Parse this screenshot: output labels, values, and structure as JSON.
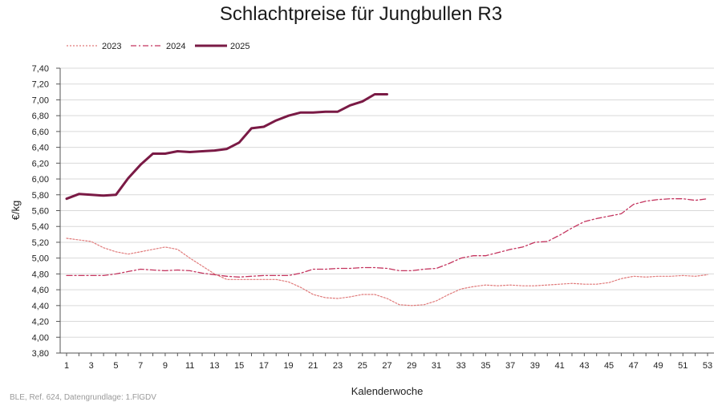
{
  "chart_data": {
    "type": "line",
    "title": "Schlachtpreise für Jungbullen R3",
    "xlabel": "Kalenderwoche",
    "ylabel": "€/kg",
    "ylim": [
      3.8,
      7.4
    ],
    "xlim": [
      1,
      53
    ],
    "grid": true,
    "legend_position": "top-left",
    "x_ticks": [
      "1",
      "3",
      "5",
      "7",
      "9",
      "11",
      "13",
      "15",
      "17",
      "19",
      "21",
      "23",
      "25",
      "27",
      "29",
      "31",
      "33",
      "35",
      "37",
      "39",
      "41",
      "43",
      "45",
      "47",
      "49",
      "51",
      "53"
    ],
    "y_ticks": [
      "3,80",
      "4,00",
      "4,20",
      "4,40",
      "4,60",
      "4,80",
      "5,00",
      "5,20",
      "5,40",
      "5,60",
      "5,80",
      "6,00",
      "6,20",
      "6,40",
      "6,60",
      "6,80",
      "7,00",
      "7,20",
      "7,40"
    ],
    "series": [
      {
        "name": "2023",
        "color": "#e07a7a",
        "style": "dotted",
        "x": [
          1,
          2,
          3,
          4,
          5,
          6,
          7,
          8,
          9,
          10,
          11,
          12,
          13,
          14,
          15,
          16,
          17,
          18,
          19,
          20,
          21,
          22,
          23,
          24,
          25,
          26,
          27,
          28,
          29,
          30,
          31,
          32,
          33,
          34,
          35,
          36,
          37,
          38,
          39,
          40,
          41,
          42,
          43,
          44,
          45,
          46,
          47,
          48,
          49,
          50,
          51,
          52,
          53
        ],
        "values": [
          5.25,
          5.23,
          5.21,
          5.13,
          5.08,
          5.05,
          5.08,
          5.11,
          5.14,
          5.11,
          5.0,
          4.9,
          4.8,
          4.73,
          4.73,
          4.73,
          4.73,
          4.73,
          4.7,
          4.63,
          4.54,
          4.5,
          4.49,
          4.51,
          4.54,
          4.54,
          4.49,
          4.41,
          4.4,
          4.41,
          4.46,
          4.54,
          4.61,
          4.64,
          4.66,
          4.65,
          4.66,
          4.65,
          4.65,
          4.66,
          4.67,
          4.68,
          4.67,
          4.67,
          4.69,
          4.74,
          4.77,
          4.76,
          4.77,
          4.77,
          4.78,
          4.77,
          4.79
        ]
      },
      {
        "name": "2024",
        "color": "#c4355f",
        "style": "dashdot",
        "x": [
          1,
          2,
          3,
          4,
          5,
          6,
          7,
          8,
          9,
          10,
          11,
          12,
          13,
          14,
          15,
          16,
          17,
          18,
          19,
          20,
          21,
          22,
          23,
          24,
          25,
          26,
          27,
          28,
          29,
          30,
          31,
          32,
          33,
          34,
          35,
          36,
          37,
          38,
          39,
          40,
          41,
          42,
          43,
          44,
          45,
          46,
          47,
          48,
          49,
          50,
          51,
          52,
          53
        ],
        "values": [
          4.78,
          4.78,
          4.78,
          4.78,
          4.8,
          4.83,
          4.86,
          4.85,
          4.84,
          4.85,
          4.84,
          4.81,
          4.79,
          4.77,
          4.76,
          4.77,
          4.78,
          4.78,
          4.78,
          4.81,
          4.86,
          4.86,
          4.87,
          4.87,
          4.88,
          4.88,
          4.87,
          4.84,
          4.84,
          4.86,
          4.87,
          4.93,
          5.0,
          5.03,
          5.03,
          5.07,
          5.11,
          5.14,
          5.2,
          5.21,
          5.29,
          5.38,
          5.46,
          5.5,
          5.53,
          5.56,
          5.68,
          5.72,
          5.74,
          5.75,
          5.75,
          5.73,
          5.75
        ]
      },
      {
        "name": "2025",
        "color": "#7a1a45",
        "style": "solid",
        "x": [
          1,
          2,
          3,
          4,
          5,
          6,
          7,
          8,
          9,
          10,
          11,
          12,
          13,
          14,
          15,
          16,
          17,
          18,
          19,
          20,
          21,
          22,
          23,
          24,
          25,
          26,
          27
        ],
        "values": [
          5.75,
          5.81,
          5.8,
          5.79,
          5.8,
          6.01,
          6.18,
          6.32,
          6.32,
          6.35,
          6.34,
          6.35,
          6.36,
          6.38,
          6.46,
          6.64,
          6.66,
          6.74,
          6.8,
          6.84,
          6.84,
          6.85,
          6.85,
          6.93,
          6.98,
          7.07,
          7.07
        ]
      }
    ]
  },
  "source": "BLE, Ref. 624, Datengrundlage: 1.FlGDV"
}
